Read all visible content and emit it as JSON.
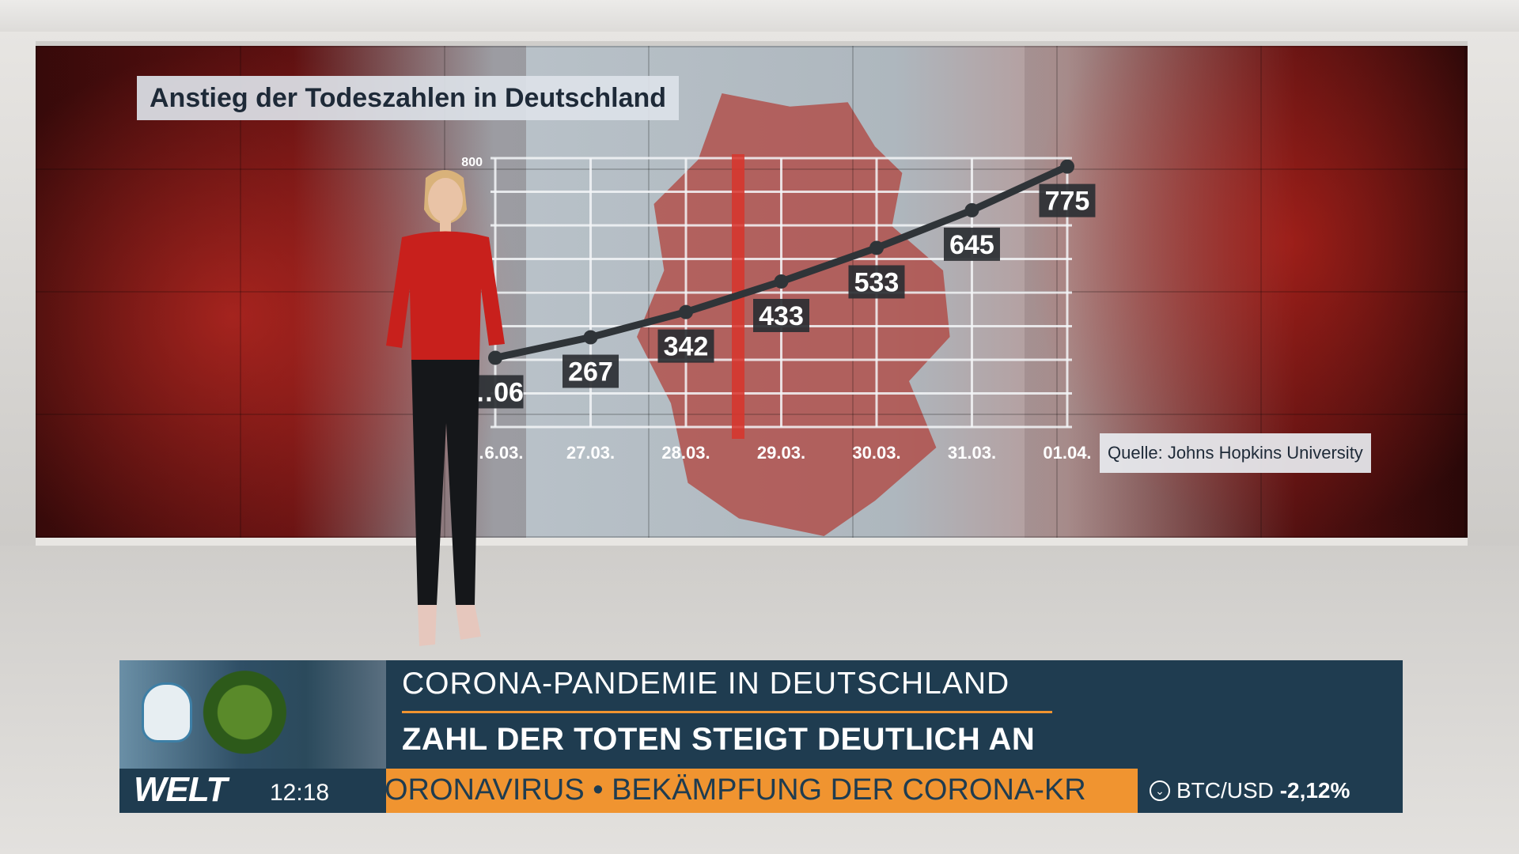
{
  "chart_data": {
    "type": "line",
    "title": "Anstieg der Todeszahlen in Deutschland",
    "source": "Quelle: Johns Hopkins University",
    "categories": [
      "26.03.",
      "27.03.",
      "28.03.",
      "29.03.",
      "30.03.",
      "31.03.",
      "01.04."
    ],
    "category_labels_shown": [
      "…6.03.",
      "27.03.",
      "28.03.",
      "29.03.",
      "30.03.",
      "31.03.",
      "01.04."
    ],
    "values": [
      206,
      267,
      342,
      433,
      533,
      645,
      775
    ],
    "value_labels_shown": [
      "…06",
      "267",
      "342",
      "433",
      "533",
      "645",
      "775"
    ],
    "ytick_top": "800",
    "ylim": [
      0,
      800
    ],
    "grid": true
  },
  "lower_third": {
    "kicker": "CORONA-PANDEMIE IN DEUTSCHLAND",
    "headline": "ZAHL DER TOTEN STEIGT DEUTLICH AN",
    "logo": "WELT",
    "time": "12:18",
    "ticker": "ORONAVIRUS • BEKÄMPFUNG DER CORONA-KR",
    "market_pair": "BTC/USD",
    "market_change": "-2,12%"
  },
  "colors": {
    "line": "#2f3438",
    "label_bg": "#2b2f33",
    "label_text": "#ffffff",
    "lower_third_bg": "#1f3c50",
    "ticker_bg": "#f09430"
  }
}
